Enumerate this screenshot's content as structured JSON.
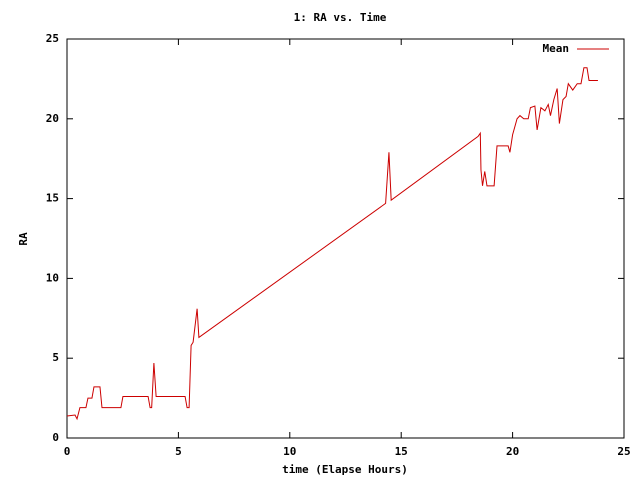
{
  "chart_data": {
    "type": "line",
    "title": "1: RA vs. Time",
    "xlabel": "time (Elapse Hours)",
    "ylabel": "RA",
    "xlim": [
      0,
      25
    ],
    "ylim": [
      0,
      25
    ],
    "xticks": [
      0,
      5,
      10,
      15,
      20,
      25
    ],
    "yticks": [
      0,
      5,
      10,
      15,
      20,
      25
    ],
    "grid": false,
    "legend": "upper right",
    "series": [
      {
        "name": "Mean",
        "color": "#cc0000",
        "x": [
          0,
          0.36,
          0.45,
          0.58,
          0.85,
          0.94,
          1.12,
          1.21,
          1.48,
          1.57,
          2.42,
          2.51,
          3.64,
          3.73,
          3.8,
          3.9,
          4.0,
          5.3,
          5.39,
          5.48,
          5.57,
          5.66,
          5.84,
          5.92,
          14.3,
          14.45,
          14.55,
          18.45,
          18.55,
          18.58,
          18.65,
          18.75,
          18.85,
          19.17,
          19.3,
          19.8,
          19.88,
          20.0,
          20.2,
          20.33,
          20.5,
          20.7,
          20.8,
          21.0,
          21.1,
          21.27,
          21.45,
          21.6,
          21.7,
          21.85,
          22.0,
          22.1,
          22.26,
          22.4,
          22.5,
          22.7,
          22.9,
          23.07,
          23.2,
          23.34,
          23.43,
          23.83
        ],
        "values": [
          1.38,
          1.44,
          1.2,
          1.9,
          1.9,
          2.5,
          2.5,
          3.2,
          3.2,
          1.9,
          1.9,
          2.6,
          2.6,
          1.9,
          1.9,
          4.7,
          2.6,
          2.6,
          1.9,
          1.9,
          5.8,
          6.0,
          8.1,
          6.3,
          14.7,
          17.9,
          14.9,
          18.9,
          19.1,
          16.8,
          15.8,
          16.7,
          15.8,
          15.8,
          18.3,
          18.3,
          17.9,
          19.0,
          20.0,
          20.2,
          20.0,
          20.0,
          20.7,
          20.8,
          19.3,
          20.7,
          20.5,
          20.9,
          20.2,
          21.2,
          21.9,
          19.7,
          21.2,
          21.4,
          22.2,
          21.8,
          22.2,
          22.2,
          23.2,
          23.2,
          22.4,
          22.4
        ]
      }
    ]
  }
}
